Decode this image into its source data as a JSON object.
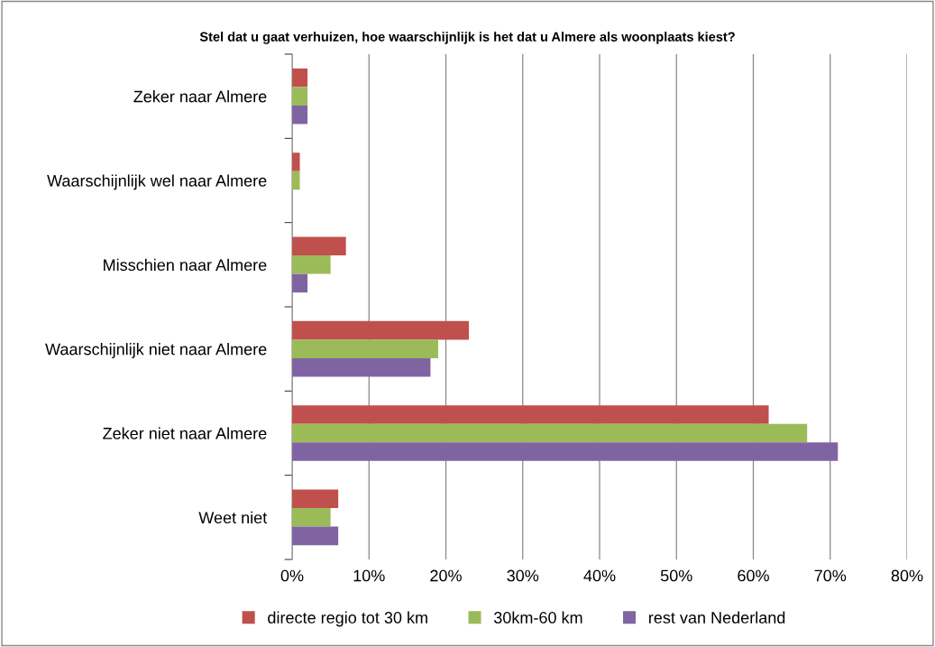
{
  "chart_data": {
    "type": "bar",
    "orientation": "horizontal",
    "title": "Stel dat u gaat verhuizen, hoe waarschijnlijk is het dat u Almere als woonplaats kiest?",
    "categories": [
      "Zeker naar Almere",
      "Waarschijnlijk wel naar Almere",
      "Misschien naar Almere",
      "Waarschijnlijk niet naar Almere",
      "Zeker niet naar Almere",
      "Weet niet"
    ],
    "series": [
      {
        "name": "directe regio tot 30 km",
        "color": "#c0504d",
        "values": [
          2,
          1,
          7,
          23,
          62,
          6
        ]
      },
      {
        "name": "30km-60 km",
        "color": "#9bbb59",
        "values": [
          2,
          1,
          5,
          19,
          67,
          5
        ]
      },
      {
        "name": "rest van Nederland",
        "color": "#8064a2",
        "values": [
          2,
          0,
          2,
          18,
          71,
          6
        ]
      }
    ],
    "xlim": [
      0,
      80
    ],
    "xticks": [
      {
        "value": 0,
        "label": "0%"
      },
      {
        "value": 10,
        "label": "10%"
      },
      {
        "value": 20,
        "label": "20%"
      },
      {
        "value": 30,
        "label": "30%"
      },
      {
        "value": 40,
        "label": "40%"
      },
      {
        "value": 50,
        "label": "50%"
      },
      {
        "value": 60,
        "label": "60%"
      },
      {
        "value": 70,
        "label": "70%"
      },
      {
        "value": 80,
        "label": "80%"
      }
    ],
    "grid": "x",
    "legend": "bottom"
  }
}
